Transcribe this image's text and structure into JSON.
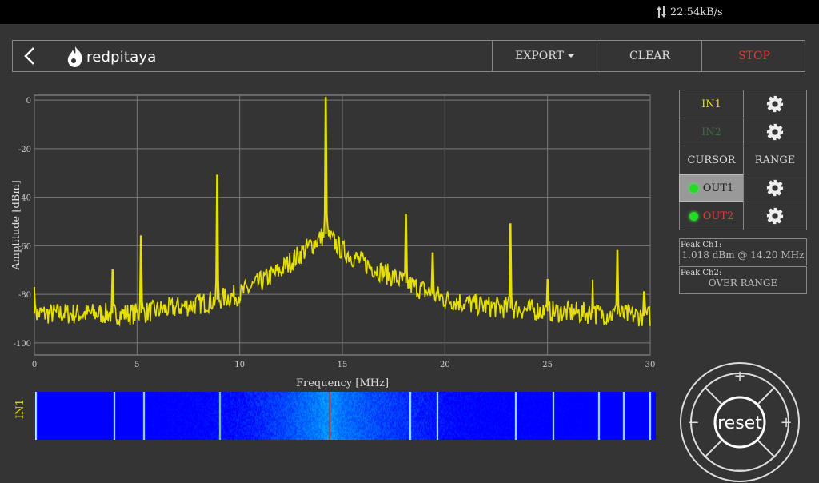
{
  "status": {
    "net_speed": "22.54kB/s"
  },
  "app": {
    "logo_text": "redpitaya"
  },
  "toolbar": {
    "export_label": "EXPORT",
    "clear_label": "CLEAR",
    "stop_label": "STOP"
  },
  "panel": {
    "in1": "IN1",
    "in2": "IN2",
    "cursor": "CURSOR",
    "range": "RANGE",
    "out1": "OUT1",
    "out2": "OUT2",
    "peak1_title": "Peak  Ch1:",
    "peak1_value": "1.018  dBm @ 14.20  MHz",
    "peak2_title": "Peak  Ch2:",
    "peak2_value": "OVER RANGE"
  },
  "dpad": {
    "up": "+",
    "down": "−",
    "left": "−",
    "right": "+",
    "center": "reset"
  },
  "waterfall": {
    "channel_label": "IN1"
  },
  "colors": {
    "trace": "#e6e000",
    "stop": "#e53935",
    "out2": "#e53935",
    "in2_dim": "#3f6b3f",
    "led": "#22dd22"
  },
  "chart_data": {
    "type": "line",
    "xlabel": "Frequency   [MHz]",
    "ylabel": "Amplitude  [dBm]",
    "xlim": [
      0,
      30
    ],
    "ylim": [
      -105,
      2
    ],
    "xticks": [
      "0",
      "5",
      "10",
      "15",
      "20",
      "25",
      "30"
    ],
    "yticks": [
      "0",
      "-20",
      "-40",
      "-60",
      "-80",
      "-100"
    ],
    "grid": true,
    "series": [
      {
        "color": "#e6e000",
        "baseline": [
          [
            0,
            -88
          ],
          [
            5,
            -88
          ],
          [
            8,
            -84
          ],
          [
            10,
            -80
          ],
          [
            12,
            -70
          ],
          [
            13,
            -63
          ],
          [
            14.2,
            -55
          ],
          [
            15,
            -62
          ],
          [
            16,
            -67
          ],
          [
            18,
            -75
          ],
          [
            20,
            -82
          ],
          [
            22,
            -85
          ],
          [
            25,
            -87
          ],
          [
            30,
            -89
          ]
        ],
        "peaks": [
          [
            0,
            -77
          ],
          [
            3.8,
            -70
          ],
          [
            5.2,
            -56
          ],
          [
            8.9,
            -31
          ],
          [
            14.2,
            1
          ],
          [
            18.1,
            -47
          ],
          [
            19.4,
            -63
          ],
          [
            23.2,
            -51
          ],
          [
            25.0,
            -74
          ],
          [
            27.2,
            -74
          ],
          [
            28.4,
            -62
          ],
          [
            29.7,
            -79
          ]
        ]
      }
    ]
  }
}
